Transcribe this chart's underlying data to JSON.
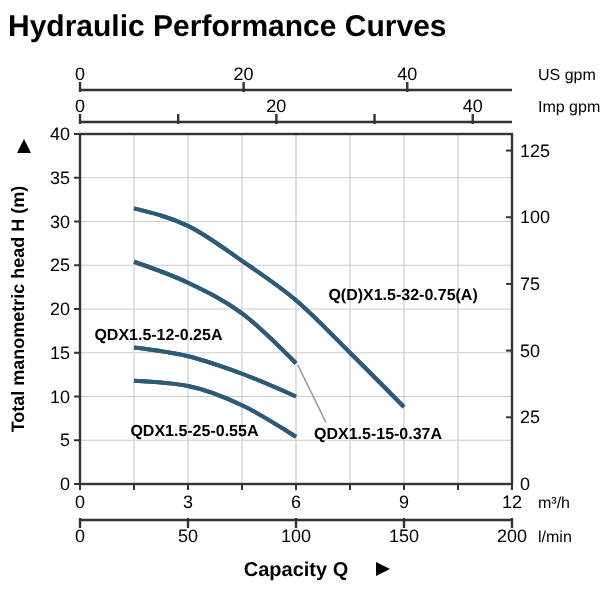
{
  "chart_data": [
    {
      "type": "line",
      "title": "Hydraulic Performance Curves",
      "xlabel": "Capacity Q",
      "ylabel": "Total manometric head H (m)",
      "x": [
        1.5,
        3,
        4.5,
        6,
        7.5,
        9
      ],
      "series": [
        {
          "name": "Q(D)X1.5-32-0.75(A)",
          "color": "#2e5a7a",
          "values": [
            31.5,
            29.5,
            25.5,
            21,
            15,
            8.8
          ]
        },
        {
          "name": "QDX1.5-15-0.37A",
          "color": "#2e5a7a",
          "values": [
            25.4,
            23,
            19.5,
            13.8,
            null,
            null
          ]
        },
        {
          "name": "QDX1.5-12-0.25A",
          "color": "#2e5a7a",
          "values": [
            15.6,
            14.6,
            12.6,
            10,
            null,
            null
          ]
        },
        {
          "name": "QDX1.5-25-0.55A",
          "color": "#2e5a7a",
          "values": [
            11.8,
            11.2,
            9,
            5.4,
            null,
            null
          ]
        }
      ],
      "xlim": [
        0,
        12
      ],
      "xticks": [
        0,
        {
          "value": 1.5,
          "label": null
        },
        3,
        {
          "value": 4.5,
          "label": null
        },
        6,
        {
          "value": 7.5,
          "label": null
        },
        9,
        {
          "value": 10.5,
          "label": null
        },
        12
      ],
      "ylim": [
        0,
        40
      ],
      "yticks": [
        0,
        5,
        10,
        15,
        20,
        25,
        30,
        35,
        40
      ],
      "y2lim": [
        0,
        131.2
      ],
      "y2ticks": [
        0,
        25,
        50,
        75,
        100,
        125
      ],
      "x2lim": [
        0,
        44
      ],
      "x2ticks": [
        0,
        {
          "value": 10,
          "label": null
        },
        20,
        {
          "value": 30,
          "label": null
        },
        40
      ],
      "x2label": "Imp gpm",
      "annotations": [
        "m³/h"
      ],
      "grid": true,
      "line_style": "solid"
    },
    {
      "type": "line",
      "x": [
        25,
        50,
        75,
        100,
        125,
        150
      ],
      "series": [
        {
          "color": "#2e5a7a",
          "values": [
            31.5,
            29.5,
            25.5,
            21,
            15,
            8.8
          ]
        },
        {
          "color": "#2e5a7a",
          "values": [
            25.4,
            23,
            19.5,
            13.8,
            null,
            null
          ]
        },
        {
          "color": "#2e5a7a",
          "values": [
            15.6,
            14.6,
            12.6,
            10,
            null,
            null
          ]
        },
        {
          "color": "#2e5a7a",
          "values": [
            11.8,
            11.2,
            9,
            5.4,
            null,
            null
          ]
        }
      ],
      "ylim": [
        0,
        40
      ],
      "yticks": [
        0,
        5,
        10,
        15,
        20,
        25,
        30,
        35,
        40
      ],
      "xlim": [
        0,
        200
      ],
      "xticks": [
        0,
        50,
        100,
        150,
        200
      ],
      "xlabel": "l/min",
      "x2lim": [
        0,
        52.8
      ],
      "x2ticks": [
        0,
        20,
        40
      ],
      "x2label": "US gpm",
      "tick_labels": "x"
    }
  ]
}
